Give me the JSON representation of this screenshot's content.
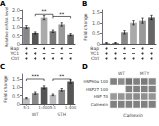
{
  "chart_data": [
    {
      "type": "bar",
      "title": "A",
      "ylabel": "Relative mRNA level",
      "categories": [
        null,
        null,
        null,
        null,
        null,
        null
      ],
      "values": [
        1.0,
        0.65,
        1.55,
        0.75,
        1.15,
        0.55
      ],
      "errors": [
        0.08,
        0.06,
        0.12,
        0.07,
        0.1,
        0.06
      ],
      "colors": [
        "#888888",
        "#555555",
        "#aaaaaa",
        "#777777",
        "#999999",
        "#666666"
      ],
      "ylim": [
        0,
        2.0
      ],
      "yticks": [
        0,
        0.5,
        {
          "value": 1.0,
          "label": "1.0"
        },
        1.5,
        {
          "value": 2.0,
          "label": "2.0"
        }
      ],
      "annotations": [
        {
          "text": "**",
          "from": 1,
          "to": 3,
          "y": 1.75
        },
        {
          "text": "**",
          "from": 3,
          "to": 5,
          "y": 1.62
        }
      ],
      "conditions": [
        {
          "name": "Bap",
          "pattern": [
            1,
            0,
            1,
            0,
            1,
            0
          ]
        },
        {
          "name": "YC1",
          "pattern": [
            1,
            1,
            0,
            0,
            0,
            0
          ]
        },
        {
          "name": "Ctrl",
          "pattern": [
            1,
            1,
            1,
            1,
            1,
            1
          ]
        }
      ],
      "grid": false,
      "tick_labels": "y"
    },
    {
      "type": "bar",
      "title": "B",
      "ylabel": "Fold change",
      "categories": [
        null,
        null,
        null,
        null,
        null,
        null
      ],
      "values": [
        0.05,
        0.05,
        0.55,
        1.0,
        1.1,
        1.25
      ],
      "errors": [
        0.02,
        0.02,
        0.08,
        0.1,
        0.12,
        0.1
      ],
      "colors": [
        "#aaaaaa",
        "#888888",
        "#888888",
        "#aaaaaa",
        "#999999",
        "#666666"
      ],
      "ylim": [
        0,
        1.6
      ],
      "yticks": [
        0,
        0.5,
        {
          "value": 1.0,
          "label": "1.0"
        },
        1.5
      ],
      "conditions": [
        {
          "name": "Bap",
          "pattern": [
            1,
            0,
            1,
            0,
            1,
            0
          ]
        },
        {
          "name": "YC1",
          "pattern": [
            1,
            1,
            0,
            0,
            1,
            1
          ]
        },
        {
          "name": "Ctrl",
          "pattern": [
            1,
            1,
            1,
            1,
            1,
            1
          ]
        }
      ],
      "grid": false,
      "tick_labels": "y"
    },
    {
      "type": "bar",
      "title": "C",
      "ylabel": "Fold change",
      "groups": [
        {
          "name": "WT",
          "categories": [
            "5:1",
            null,
            "1:400"
          ],
          "values": [
            0.35,
            0.65,
            1.0
          ],
          "errors": [
            0.04,
            0.07,
            0.09
          ],
          "colors": [
            "#bbbbbb",
            "#888888",
            "#555555"
          ],
          "annotation": {
            "text": "***",
            "y": 1.5
          }
        },
        {
          "name": "STH",
          "categories": [
            "5:1",
            null,
            "1:400"
          ],
          "values": [
            0.55,
            0.85,
            1.35
          ],
          "errors": [
            0.05,
            0.08,
            0.1
          ],
          "colors": [
            "#bbbbbb",
            "#888888",
            "#555555"
          ],
          "annotation": {
            "text": "**",
            "y": 1.5
          }
        }
      ],
      "ylim": [
        0,
        1.8
      ],
      "yticks": [
        0,
        0.5,
        {
          "value": 1.0,
          "label": "1.0"
        },
        1.5
      ],
      "grid": false
    },
    {
      "type": "heatmap",
      "title": "D",
      "rows": [
        "HSP90α 100",
        "HSP27 100",
        "HSP 70",
        "Calnexin"
      ],
      "categories": [
        null,
        null,
        null,
        null,
        null,
        null
      ],
      "cells": [
        [
          0.5,
          0.45,
          0.55,
          0.5,
          0.52,
          0.48
        ],
        [
          0,
          0,
          0.5,
          0.5,
          0.5,
          0.5
        ],
        [
          0.4,
          0.42,
          0.44,
          0.46,
          0.44,
          0.42
        ],
        [
          0.5,
          0.5,
          0.5,
          0.5,
          0.5,
          0.5
        ]
      ],
      "zlim": [
        0,
        1
      ],
      "groups": [
        "WT",
        "MTY"
      ],
      "xlabel": "Calnexin",
      "tick_labels": "y"
    }
  ]
}
